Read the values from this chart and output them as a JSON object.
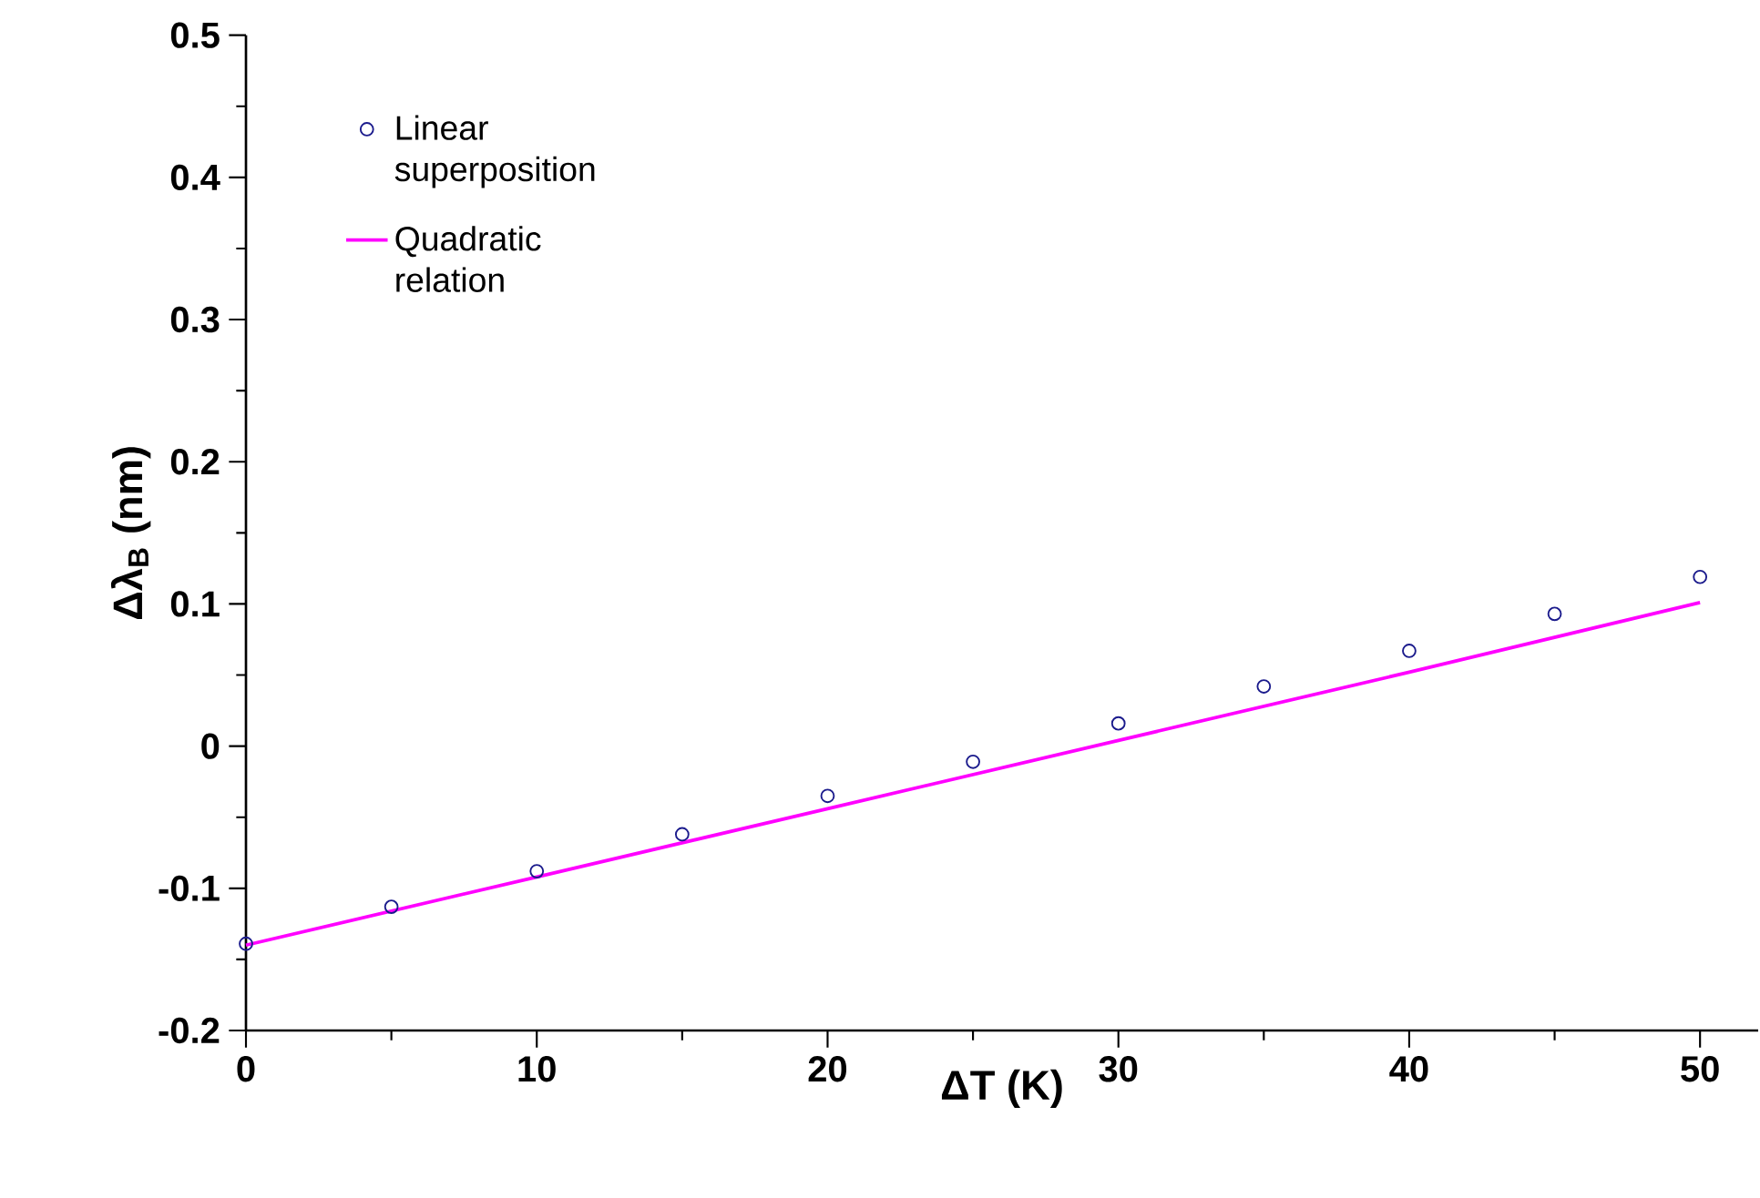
{
  "chart_data": {
    "type": "scatter",
    "xlabel": "ΔT (K)",
    "ylabel": "Δλ$_{B}$ (nm)",
    "xlim": [
      0,
      52
    ],
    "xticks": [
      0,
      10,
      20,
      30,
      40,
      50
    ],
    "ylim": [
      -0.2,
      0.5
    ],
    "yticks": [
      -0.2,
      -0.1,
      0,
      0.1,
      0.2,
      0.3,
      0.4,
      0.5
    ],
    "grid": false,
    "legend": "top left",
    "series": [
      {
        "name": "Linear superposition",
        "marker": "circle",
        "color": "#1a1a8c",
        "x": [
          0,
          5,
          10,
          15,
          20,
          25,
          30,
          35,
          40,
          45,
          50
        ],
        "values": [
          -0.139,
          -0.113,
          -0.088,
          -0.062,
          -0.035,
          -0.011,
          0.016,
          0.042,
          0.067,
          0.093,
          0.119
        ]
      },
      {
        "name": "Quadratic relation",
        "type": "line",
        "marker": "none",
        "line_style": "solid",
        "color": "#ff00ff",
        "x": [
          0,
          10,
          20,
          30,
          40,
          50
        ],
        "values": [
          -0.14,
          -0.092,
          -0.044,
          0.004,
          0.052,
          0.101
        ]
      }
    ]
  }
}
